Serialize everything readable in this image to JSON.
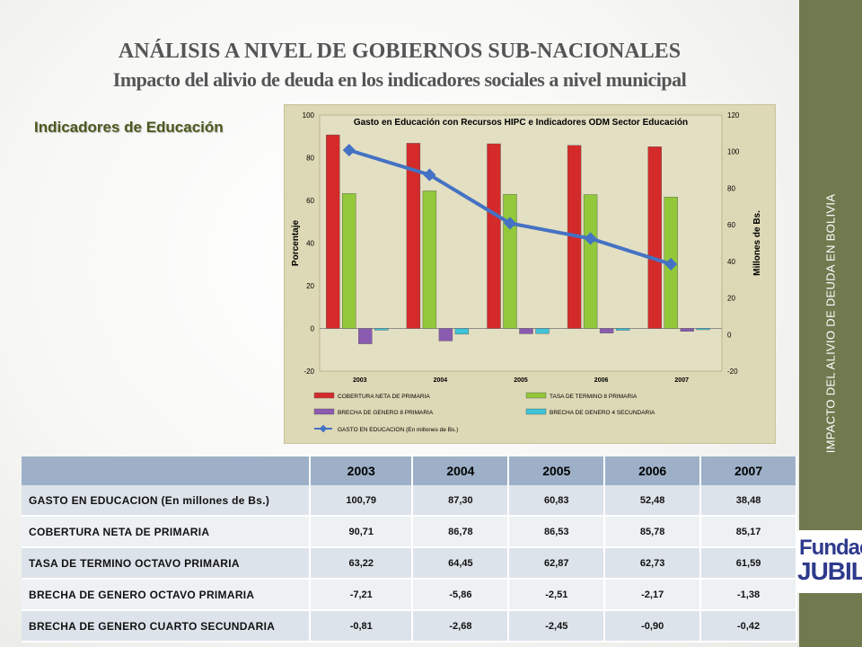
{
  "header": {
    "title": "ANÁLISIS A NIVEL DE GOBIERNOS SUB-NACIONALES",
    "subtitle": "Impacto del alivio de deuda en los indicadores sociales a nivel municipal"
  },
  "section_label": "Indicadores de Educación",
  "sidebar": {
    "text": "IMPACTO DEL ALIVIO DE DEUDA EN BOLIVIA",
    "logo_line1": "Fundación",
    "logo_line2": "JUBILEO"
  },
  "colors": {
    "sidebar": "#6f7a4f",
    "chart_background": "#ddd8b5",
    "table_header": "#9db0c8",
    "bar_red": "#d42a2a",
    "bar_green": "#92c83a",
    "bar_purple": "#8a5bb0",
    "bar_cyan": "#3ec3d8",
    "line_blue": "#4472c4"
  },
  "chart_data": {
    "type": "bar",
    "title": "Gasto en Educación con Recursos HIPC e Indicadores ODM Sector Educación",
    "categories": [
      "2003",
      "2004",
      "2005",
      "2006",
      "2007"
    ],
    "ylabel": "Porcentaje",
    "ylabel_right": "Millones de Bs.",
    "ylim": [
      -20,
      100
    ],
    "ylim_right": [
      -20,
      120
    ],
    "yticks": [
      "-20",
      "0",
      "20",
      "40",
      "60",
      "80",
      "100"
    ],
    "yticks_right": [
      "-20",
      "0",
      "20",
      "40",
      "60",
      "80",
      "100",
      "120"
    ],
    "legend_position": "bottom",
    "series": [
      {
        "name": "COBERTURA NETA DE PRIMARIA",
        "type": "bar",
        "color": "#d42a2a",
        "values": [
          90.71,
          86.78,
          86.53,
          85.78,
          85.17
        ]
      },
      {
        "name": "TASA DE TERMINO 8 PRIMARIA",
        "type": "bar",
        "color": "#92c83a",
        "values": [
          63.22,
          64.45,
          62.87,
          62.73,
          61.59
        ]
      },
      {
        "name": "BRECHA DE GENERO 8 PRIMARIA",
        "type": "bar",
        "color": "#8a5bb0",
        "values": [
          -7.21,
          -5.86,
          -2.51,
          -2.17,
          -1.38
        ]
      },
      {
        "name": "BRECHA DE GENERO 4 SECUNDARIA",
        "type": "bar",
        "color": "#3ec3d8",
        "values": [
          -0.81,
          -2.68,
          -2.45,
          -0.9,
          -0.42
        ]
      },
      {
        "name": "GASTO EN EDUCACION  (En millones de Bs.)",
        "type": "line",
        "axis": "right",
        "color": "#4472c4",
        "values": [
          100.79,
          87.3,
          60.83,
          52.48,
          38.48
        ]
      }
    ]
  },
  "table": {
    "headers": [
      "2003",
      "2004",
      "2005",
      "2006",
      "2007"
    ],
    "rows": [
      {
        "label": "GASTO EN EDUCACION  (En millones de Bs.)",
        "values": [
          "100,79",
          "87,30",
          "60,83",
          "52,48",
          "38,48"
        ]
      },
      {
        "label": "COBERTURA NETA DE PRIMARIA",
        "values": [
          "90,71",
          "86,78",
          "86,53",
          "85,78",
          "85,17"
        ]
      },
      {
        "label": "TASA DE TERMINO OCTAVO PRIMARIA",
        "values": [
          "63,22",
          "64,45",
          "62,87",
          "62,73",
          "61,59"
        ]
      },
      {
        "label": "BRECHA DE GENERO OCTAVO PRIMARIA",
        "values": [
          "-7,21",
          "-5,86",
          "-2,51",
          "-2,17",
          "-1,38"
        ]
      },
      {
        "label": "BRECHA DE GENERO CUARTO SECUNDARIA",
        "values": [
          "-0,81",
          "-2,68",
          "-2,45",
          "-0,90",
          "-0,42"
        ]
      }
    ]
  }
}
